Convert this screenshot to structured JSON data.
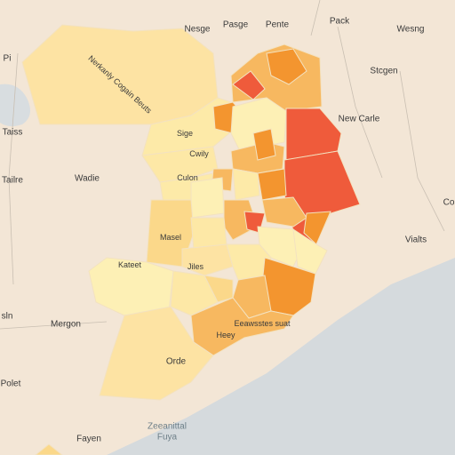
{
  "labels": {
    "top_1": "Nesge",
    "top_2": "Pasge",
    "top_3": "Pente",
    "top_4": "Pack",
    "top_5": "Wesng",
    "nw_1": "Pi",
    "nw_region": "Nerkanly Cogain Beuts",
    "east_1": "Stcgen",
    "east_2": "New Carle",
    "east_3": "Co",
    "east_4": "Vialts",
    "w_1": "Taiss",
    "w_2": "Tailre",
    "w_3": "Wadie",
    "w_4": "sln",
    "w_5": "Mergon",
    "w_6": "Polet",
    "c_1": "Sige",
    "c_2": "Cwily",
    "c_3": "Culon",
    "c_4": "Masel",
    "c_5": "Kateet",
    "c_6": "Eeawsstes suat",
    "c_7": "Orde",
    "c_8": "Jiles",
    "c_9": "Heey",
    "s_1": "Fayen",
    "water_1": "Zeeanittal",
    "water_2": "Fuya"
  },
  "legend_colors": {
    "lightest": "#fdf0b5",
    "light": "#fbd88a",
    "mid": "#f7b860",
    "orange": "#f3952f",
    "red": "#ef5b3b",
    "water": "#d5dadd",
    "land": "#f3e6d6"
  }
}
